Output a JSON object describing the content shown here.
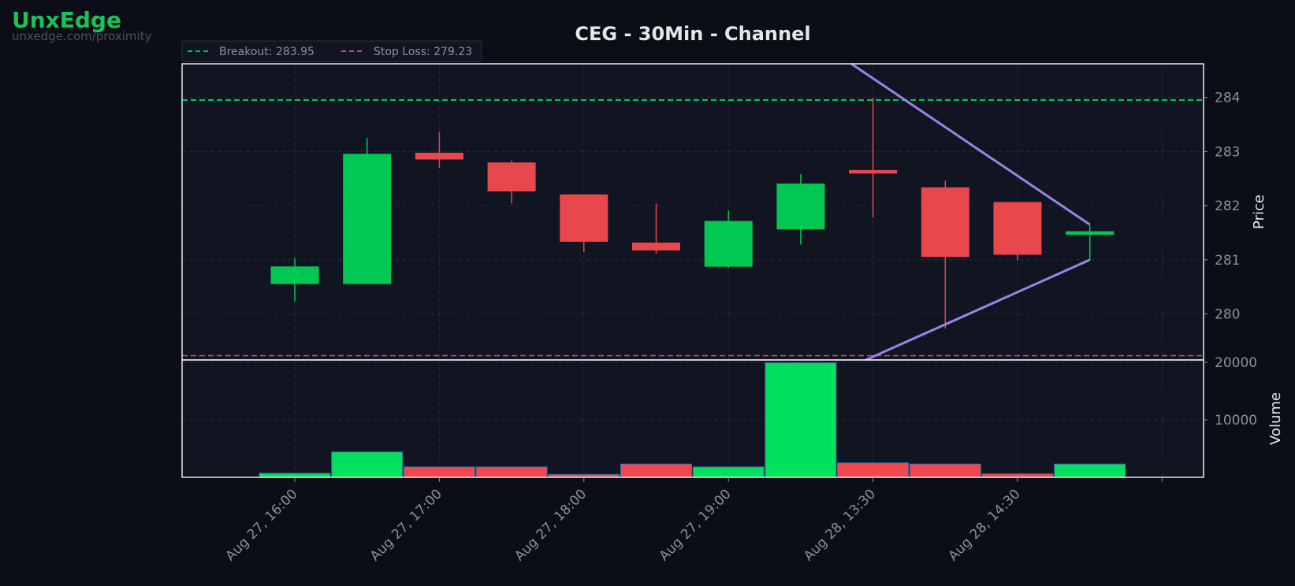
{
  "brand": {
    "name": "UnxEdge",
    "url": "unxedge.com/proximity"
  },
  "colors": {
    "background": "#0b0e16",
    "plot_bg": "#111522",
    "up": "#00c853",
    "down": "#e8474c",
    "volume_up": "#00e15e",
    "volume_down": "#f2474f",
    "breakout": "#00c853",
    "stop_loss": "#e8474c",
    "channel": "#9b82e6"
  },
  "chart_data": {
    "type": "candlestick",
    "title": "CEG - 30Min - Channel",
    "ylabel": "Price",
    "volume_label": "Volume",
    "ylim": [
      279.15,
      284.62
    ],
    "volume_ylim": [
      0,
      20400
    ],
    "yticks": [
      280,
      281,
      282,
      283,
      284
    ],
    "volume_yticks": [
      10000,
      20000
    ],
    "xticks": [
      {
        "index": 0,
        "label": "Aug 27, 16:00"
      },
      {
        "index": 2,
        "label": "Aug 27, 17:00"
      },
      {
        "index": 4,
        "label": "Aug 27, 18:00"
      },
      {
        "index": 6,
        "label": "Aug 27, 19:00"
      },
      {
        "index": 8,
        "label": "Aug 28, 13:30"
      },
      {
        "index": 10,
        "label": "Aug 28, 14:30"
      },
      {
        "index": 12,
        "label": ""
      }
    ],
    "candles": [
      {
        "open": 280.56,
        "high": 281.03,
        "low": 280.23,
        "close": 280.87,
        "volume": 700
      },
      {
        "open": 280.56,
        "high": 283.25,
        "low": 280.56,
        "close": 282.95,
        "volume": 4400
      },
      {
        "open": 282.97,
        "high": 283.36,
        "low": 282.7,
        "close": 282.86,
        "volume": 1800
      },
      {
        "open": 282.79,
        "high": 282.84,
        "low": 282.04,
        "close": 282.27,
        "volume": 1800
      },
      {
        "open": 282.2,
        "high": 282.2,
        "low": 281.14,
        "close": 281.34,
        "volume": 500
      },
      {
        "open": 281.31,
        "high": 282.04,
        "low": 281.11,
        "close": 281.18,
        "volume": 2300
      },
      {
        "open": 280.88,
        "high": 281.91,
        "low": 280.85,
        "close": 281.71,
        "volume": 1800
      },
      {
        "open": 281.57,
        "high": 282.58,
        "low": 281.28,
        "close": 282.4,
        "volume": 19900
      },
      {
        "open": 282.65,
        "high": 283.99,
        "low": 281.78,
        "close": 282.6,
        "volume": 2500
      },
      {
        "open": 282.33,
        "high": 282.46,
        "low": 279.73,
        "close": 281.06,
        "volume": 2300
      },
      {
        "open": 282.06,
        "high": 282.06,
        "low": 280.99,
        "close": 281.1,
        "volume": 600
      },
      {
        "open": 281.47,
        "high": 281.64,
        "low": 280.99,
        "close": 281.52,
        "volume": 2300
      }
    ],
    "breakout": {
      "label": "Breakout: 283.95",
      "value": 283.95
    },
    "stop_loss": {
      "label": "Stop Loss: 279.23",
      "value": 279.23
    },
    "channel": {
      "upper": [
        [
          7.7,
          284.62
        ],
        [
          11.0,
          281.65
        ]
      ],
      "lower": [
        [
          7.9,
          279.15
        ],
        [
          11.0,
          281.0
        ]
      ]
    },
    "legend_position": "top-left",
    "grid": true
  }
}
